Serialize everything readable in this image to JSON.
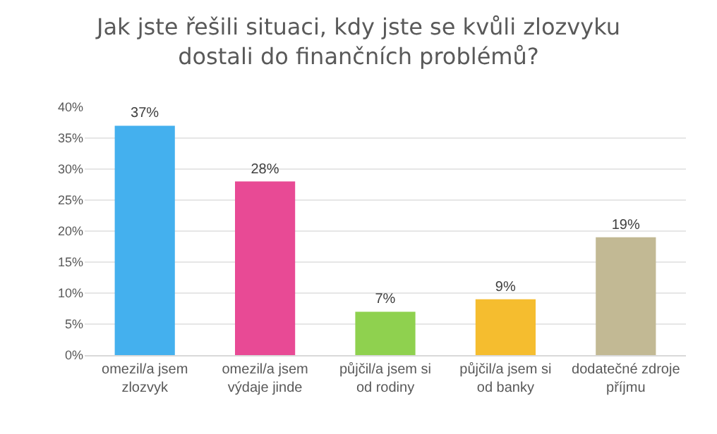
{
  "chart_data": {
    "type": "bar",
    "title": "Jak jste řešili situaci, kdy jste se kvůli zlozvyku\ndostali do finančních problémů?",
    "categories": [
      "omezil/a jsem\nzlozvyk",
      "omezil/a jsem\nvýdaje jinde",
      "půjčil/a jsem si\nod rodiny",
      "půjčil/a jsem si\nod banky",
      "dodatečné zdroje\npříjmu"
    ],
    "values": [
      37,
      28,
      7,
      9,
      19
    ],
    "colors": [
      "#44b0ee",
      "#e84a95",
      "#8fd14f",
      "#f5bd2f",
      "#c2b994"
    ],
    "value_labels": [
      "37%",
      "28%",
      "7%",
      "9%",
      "19%"
    ],
    "ylim": [
      0,
      40
    ],
    "yticks": [
      {
        "value": 0,
        "label": "0%"
      },
      {
        "value": 5,
        "label": "5%"
      },
      {
        "value": 10,
        "label": "10%"
      },
      {
        "value": 15,
        "label": "15%"
      },
      {
        "value": 20,
        "label": "20%"
      },
      {
        "value": 25,
        "label": "25%"
      },
      {
        "value": 30,
        "label": "30%"
      },
      {
        "value": 35,
        "label": "35%"
      },
      {
        "value": 40,
        "label": "40%"
      }
    ],
    "grid": true
  }
}
